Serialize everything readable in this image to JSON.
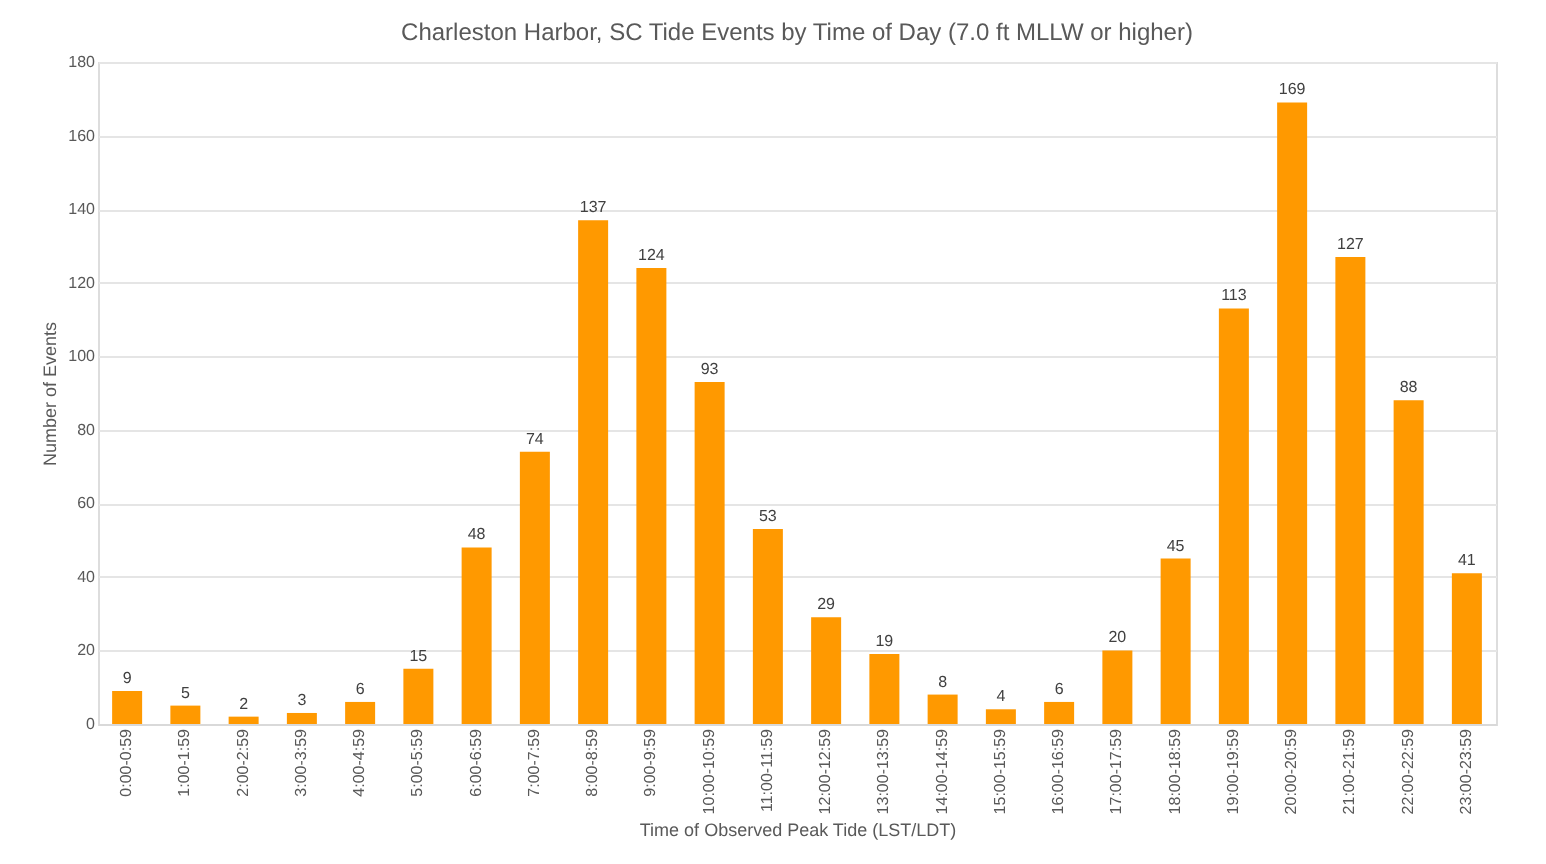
{
  "chart_data": {
    "type": "bar",
    "title": "Charleston Harbor, SC Tide Events by Time of Day (7.0 ft MLLW or higher)",
    "xlabel": "Time of Observed Peak Tide (LST/LDT)",
    "ylabel": "Number of Events",
    "categories": [
      "0:00-0:59",
      "1:00-1:59",
      "2:00-2:59",
      "3:00-3:59",
      "4:00-4:59",
      "5:00-5:59",
      "6:00-6:59",
      "7:00-7:59",
      "8:00-8:59",
      "9:00-9:59",
      "10:00-10:59",
      "11:00-11:59",
      "12:00-12:59",
      "13:00-13:59",
      "14:00-14:59",
      "15:00-15:59",
      "16:00-16:59",
      "17:00-17:59",
      "18:00-18:59",
      "19:00-19:59",
      "20:00-20:59",
      "21:00-21:59",
      "22:00-22:59",
      "23:00-23:59"
    ],
    "values": [
      9,
      5,
      2,
      3,
      6,
      15,
      48,
      74,
      137,
      124,
      93,
      53,
      29,
      19,
      8,
      4,
      6,
      20,
      45,
      113,
      169,
      127,
      88,
      41
    ],
    "color": "#ff9900",
    "ylim": [
      0,
      180
    ],
    "yticks": [
      0,
      20,
      40,
      60,
      80,
      100,
      120,
      140,
      160,
      180
    ],
    "grid": "y",
    "data_labels": true
  }
}
